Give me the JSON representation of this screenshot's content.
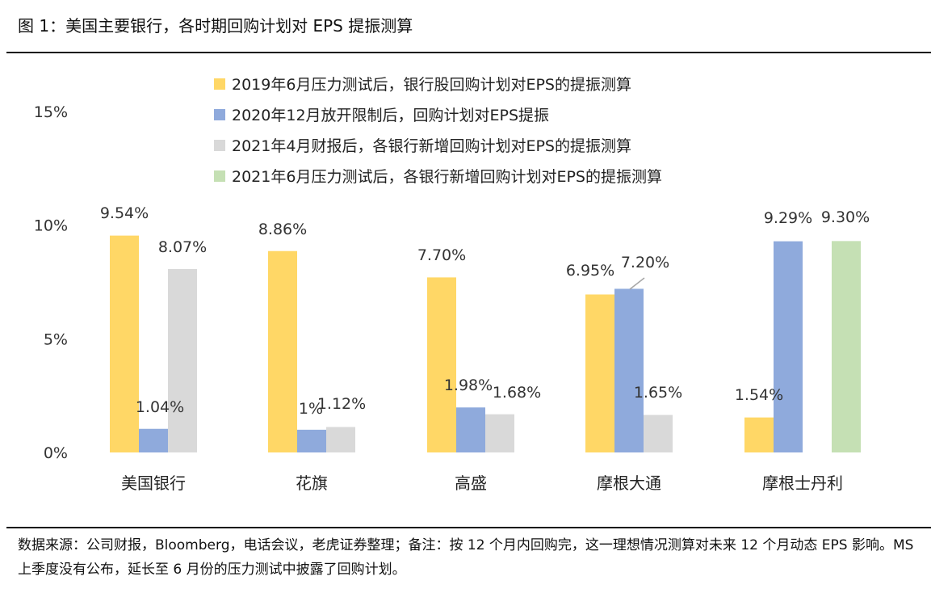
{
  "header": {
    "title": "图 1：美国主要银行，各时期回购计划对 EPS 提振测算"
  },
  "footer": {
    "source": "数据来源：公司财报，Bloomberg，电话会议，老虎证券整理；备注：按 12 个月内回购完，这一理想情况测算对未来 12 个月动态 EPS 影响。MS 上季度没有公布，延长至 6 月份的压力测试中披露了回购计划。"
  },
  "chart_data": {
    "type": "bar",
    "title": "",
    "xlabel": "",
    "ylabel": "",
    "ylim": [
      0,
      15
    ],
    "yticks": [
      0,
      5,
      10,
      15
    ],
    "yticklabels": [
      "0%",
      "5%",
      "10%",
      "15%"
    ],
    "grid": false,
    "legend_position": "top",
    "categories": [
      "美国银行",
      "花旗",
      "高盛",
      "摩根大通",
      "摩根士丹利"
    ],
    "series": [
      {
        "name": "2019年6月压力测试后，银行股回购计划对EPS的提振测算",
        "color": "#FFD766",
        "values": [
          9.54,
          8.86,
          7.7,
          6.95,
          1.54
        ],
        "labels": [
          "9.54%",
          "8.86%",
          "7.70%",
          "6.95%",
          "1.54%"
        ]
      },
      {
        "name": "2020年12月放开限制后，回购计划对EPS提振",
        "color": "#8FAADC",
        "values": [
          1.04,
          1.0,
          1.98,
          7.2,
          9.29
        ],
        "labels": [
          "1.04%",
          "1%",
          "1.98%",
          "7.20%",
          "9.29%"
        ]
      },
      {
        "name": "2021年4月财报后，各银行新增回购计划对EPS的提振测算",
        "color": "#D9D9D9",
        "values": [
          8.07,
          1.12,
          1.68,
          1.65,
          null
        ],
        "labels": [
          "8.07%",
          "1.12%",
          "1.68%",
          "1.65%",
          null
        ]
      },
      {
        "name": "2021年6月压力测试后，各银行新增回购计划对EPS的提振测算",
        "color": "#C5E0B4",
        "values": [
          null,
          null,
          null,
          null,
          9.3
        ],
        "labels": [
          null,
          null,
          null,
          null,
          "9.30%"
        ]
      }
    ]
  }
}
